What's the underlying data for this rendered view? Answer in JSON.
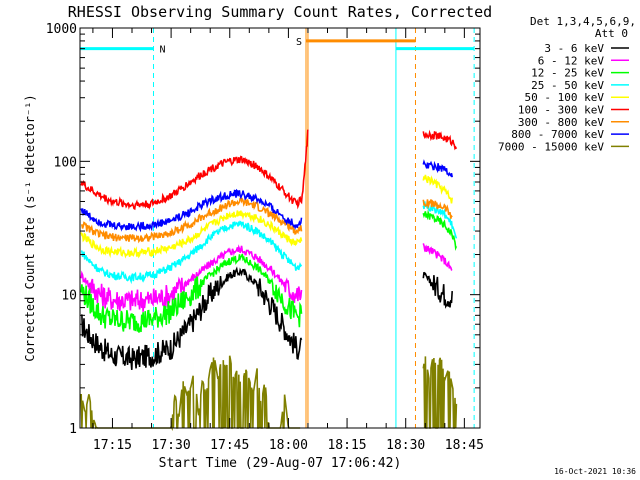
{
  "chart_data": {
    "type": "line",
    "title": "RHESSI Observing Summary Count Rates, Corrected",
    "xlabel": "Start Time (29-Aug-07 17:06:42)",
    "ylabel": "Corrected Count Rate (s⁻¹ detector⁻¹)",
    "y_scale": "log",
    "ylim": [
      1,
      1000
    ],
    "x_range_min": [
      6.7,
      109
    ],
    "y_ticks": [
      {
        "value": 1,
        "label": "1"
      },
      {
        "value": 10,
        "label": "10"
      },
      {
        "value": 100,
        "label": "100"
      },
      {
        "value": 1000,
        "label": "1000"
      }
    ],
    "x_ticks": [
      {
        "value": 15,
        "label": "17:15"
      },
      {
        "value": 30,
        "label": "17:30"
      },
      {
        "value": 45,
        "label": "17:45"
      },
      {
        "value": 60,
        "label": "18:00"
      },
      {
        "value": 75,
        "label": "18:15"
      },
      {
        "value": 90,
        "label": "18:30"
      },
      {
        "value": 105,
        "label": "18:45"
      }
    ],
    "legend_header": [
      "Det 1,3,4,5,6,9,",
      "Att 0"
    ],
    "legend_position": "right",
    "grid": false,
    "series": [
      {
        "name": "3 - 6 keV",
        "color": "#000000",
        "points": [
          [
            7,
            6
          ],
          [
            9,
            5
          ],
          [
            12,
            4
          ],
          [
            15,
            3.5
          ],
          [
            20,
            3.3
          ],
          [
            25,
            3.5
          ],
          [
            30,
            4
          ],
          [
            35,
            6
          ],
          [
            40,
            10
          ],
          [
            45,
            14
          ],
          [
            48,
            15
          ],
          [
            52,
            12
          ],
          [
            56,
            8
          ],
          [
            60,
            5
          ],
          [
            62,
            4
          ],
          [
            63.5,
            4
          ]
        ],
        "post": [
          [
            94.5,
            14
          ],
          [
            97,
            12
          ],
          [
            100,
            10
          ],
          [
            102,
            9.5
          ]
        ]
      },
      {
        "name": "6 - 12 keV",
        "color": "#ff00ff",
        "points": [
          [
            7,
            14
          ],
          [
            9,
            12
          ],
          [
            12,
            10
          ],
          [
            15,
            9.2
          ],
          [
            20,
            9
          ],
          [
            25,
            9.2
          ],
          [
            30,
            10
          ],
          [
            35,
            13
          ],
          [
            40,
            17
          ],
          [
            45,
            21
          ],
          [
            48,
            22
          ],
          [
            52,
            19
          ],
          [
            56,
            15
          ],
          [
            60,
            11
          ],
          [
            62,
            10
          ],
          [
            63.5,
            10
          ]
        ],
        "post": [
          [
            94.5,
            23
          ],
          [
            97,
            21
          ],
          [
            100,
            18
          ],
          [
            102,
            15
          ]
        ]
      },
      {
        "name": "12 - 25 keV",
        "color": "#00ff00",
        "points": [
          [
            7,
            11
          ],
          [
            9,
            9
          ],
          [
            12,
            7
          ],
          [
            15,
            6.5
          ],
          [
            20,
            6.3
          ],
          [
            25,
            6.5
          ],
          [
            30,
            7.5
          ],
          [
            35,
            10
          ],
          [
            40,
            14
          ],
          [
            45,
            18
          ],
          [
            48,
            19
          ],
          [
            52,
            16
          ],
          [
            56,
            12
          ],
          [
            60,
            8
          ],
          [
            62,
            7
          ],
          [
            63.5,
            7
          ]
        ],
        "post": [
          [
            94.5,
            40
          ],
          [
            97,
            38
          ],
          [
            100,
            33
          ],
          [
            102,
            28
          ],
          [
            103,
            22
          ]
        ]
      },
      {
        "name": "25 - 50 keV",
        "color": "#00ffff",
        "points": [
          [
            7,
            21
          ],
          [
            9,
            18
          ],
          [
            12,
            15
          ],
          [
            15,
            14
          ],
          [
            20,
            13.5
          ],
          [
            25,
            14
          ],
          [
            30,
            16
          ],
          [
            35,
            20
          ],
          [
            40,
            27
          ],
          [
            45,
            33
          ],
          [
            48,
            34
          ],
          [
            52,
            30
          ],
          [
            56,
            24
          ],
          [
            60,
            18
          ],
          [
            62,
            16
          ],
          [
            63.5,
            17
          ]
        ],
        "post": [
          [
            94.5,
            47
          ],
          [
            97,
            45
          ],
          [
            100,
            40
          ],
          [
            102,
            33
          ],
          [
            103,
            25
          ]
        ]
      },
      {
        "name": "50 - 100 keV",
        "color": "#ffff00",
        "points": [
          [
            7,
            28
          ],
          [
            9,
            25
          ],
          [
            12,
            22
          ],
          [
            15,
            21
          ],
          [
            20,
            20.5
          ],
          [
            25,
            21
          ],
          [
            30,
            22.5
          ],
          [
            35,
            26
          ],
          [
            40,
            33
          ],
          [
            45,
            40
          ],
          [
            48,
            41
          ],
          [
            52,
            38
          ],
          [
            56,
            32
          ],
          [
            60,
            26
          ],
          [
            62,
            24
          ],
          [
            63.5,
            26
          ]
        ],
        "post": [
          [
            94.5,
            75
          ],
          [
            97,
            70
          ],
          [
            100,
            60
          ],
          [
            102,
            50
          ]
        ]
      },
      {
        "name": "100 - 300 keV",
        "color": "#ff0000",
        "points": [
          [
            7,
            70
          ],
          [
            9,
            62
          ],
          [
            12,
            55
          ],
          [
            15,
            50
          ],
          [
            20,
            47
          ],
          [
            25,
            48
          ],
          [
            30,
            55
          ],
          [
            35,
            70
          ],
          [
            40,
            88
          ],
          [
            45,
            100
          ],
          [
            48,
            103
          ],
          [
            52,
            92
          ],
          [
            56,
            72
          ],
          [
            60,
            55
          ],
          [
            62,
            48
          ],
          [
            63.5,
            52
          ],
          [
            64.5,
            110
          ],
          [
            65,
            170
          ]
        ],
        "post": [
          [
            94.5,
            160
          ],
          [
            97,
            158
          ],
          [
            100,
            150
          ],
          [
            102,
            140
          ],
          [
            103,
            130
          ]
        ]
      },
      {
        "name": "300 - 800 keV",
        "color": "#ff8c00",
        "points": [
          [
            7,
            34
          ],
          [
            9,
            31
          ],
          [
            12,
            28
          ],
          [
            15,
            27
          ],
          [
            20,
            26.5
          ],
          [
            25,
            27
          ],
          [
            30,
            29
          ],
          [
            35,
            34
          ],
          [
            40,
            41
          ],
          [
            45,
            48
          ],
          [
            48,
            50
          ],
          [
            52,
            46
          ],
          [
            56,
            39
          ],
          [
            60,
            33
          ],
          [
            62,
            30
          ],
          [
            63.5,
            32
          ]
        ],
        "post": [
          [
            94.5,
            50
          ],
          [
            97,
            48
          ],
          [
            100,
            45
          ],
          [
            102,
            38
          ]
        ]
      },
      {
        "name": "800 - 7000 keV",
        "color": "#0000ff",
        "points": [
          [
            7,
            44
          ],
          [
            9,
            39
          ],
          [
            12,
            35
          ],
          [
            15,
            33
          ],
          [
            20,
            32.5
          ],
          [
            25,
            33
          ],
          [
            30,
            36
          ],
          [
            35,
            42
          ],
          [
            40,
            51
          ],
          [
            45,
            56
          ],
          [
            48,
            57
          ],
          [
            52,
            52
          ],
          [
            56,
            44
          ],
          [
            60,
            36
          ],
          [
            62,
            33
          ],
          [
            63.5,
            36
          ]
        ],
        "post": [
          [
            94.5,
            95
          ],
          [
            97,
            93
          ],
          [
            100,
            88
          ],
          [
            102,
            78
          ]
        ]
      },
      {
        "name": "7000 - 15000 keV",
        "color": "#808000",
        "points": [
          [
            7,
            1.8
          ],
          [
            8,
            1.3
          ],
          [
            9,
            1.8
          ],
          [
            10,
            1.2
          ],
          [
            11,
            1
          ],
          [
            30,
            1
          ],
          [
            31,
            1.8
          ],
          [
            32,
            1.2
          ],
          [
            33,
            2.3
          ],
          [
            34,
            1.8
          ],
          [
            35,
            2
          ],
          [
            36,
            2.8
          ],
          [
            37,
            1.2
          ],
          [
            38,
            2.3
          ],
          [
            39,
            1.8
          ],
          [
            40,
            2.8
          ],
          [
            41,
            3.5
          ],
          [
            42,
            2.3
          ],
          [
            43,
            3.5
          ],
          [
            44,
            2.8
          ],
          [
            45,
            3.5
          ],
          [
            46,
            2.3
          ],
          [
            47,
            2.8
          ],
          [
            48,
            2
          ],
          [
            49,
            2.8
          ],
          [
            50,
            2.3
          ],
          [
            51,
            1.8
          ],
          [
            52,
            2.8
          ],
          [
            53,
            1.5
          ],
          [
            54,
            2.3
          ],
          [
            55,
            1
          ],
          [
            58,
            1
          ],
          [
            59,
            1.8
          ],
          [
            60,
            1
          ],
          [
            63,
            1
          ]
        ],
        "post": [
          [
            94.5,
            2.8
          ],
          [
            95,
            3.5
          ],
          [
            96,
            2.3
          ],
          [
            97,
            3.5
          ],
          [
            98,
            2.8
          ],
          [
            99,
            3.5
          ],
          [
            100,
            2.3
          ],
          [
            101,
            2.8
          ],
          [
            102,
            2
          ],
          [
            103,
            1.5
          ]
        ]
      }
    ],
    "annotations": [
      {
        "label": "N",
        "color": "#00ffff",
        "x_start": 6.7,
        "x_end": 25.5,
        "level": 700
      },
      {
        "label": "S",
        "color": "#ff8c00",
        "x_start": 64.5,
        "x_end": 92.5,
        "level": 800
      }
    ],
    "cyan_segment_right": {
      "x_start": 87.5,
      "x_end": 107.5,
      "level": 700
    },
    "vlines": [
      {
        "x": 25.5,
        "color": "#00ffff",
        "style": "dashed"
      },
      {
        "x": 64.5,
        "color": "#ff8c00",
        "style": "solid"
      },
      {
        "x": 65.0,
        "color": "#ff8c00",
        "style": "solid"
      },
      {
        "x": 87.5,
        "color": "#00ffff",
        "style": "solid"
      },
      {
        "x": 92.5,
        "color": "#ff8c00",
        "style": "dashed"
      },
      {
        "x": 107.5,
        "color": "#00ffff",
        "style": "dashed"
      }
    ]
  },
  "timestamp": "16-Oct-2021 10:36"
}
